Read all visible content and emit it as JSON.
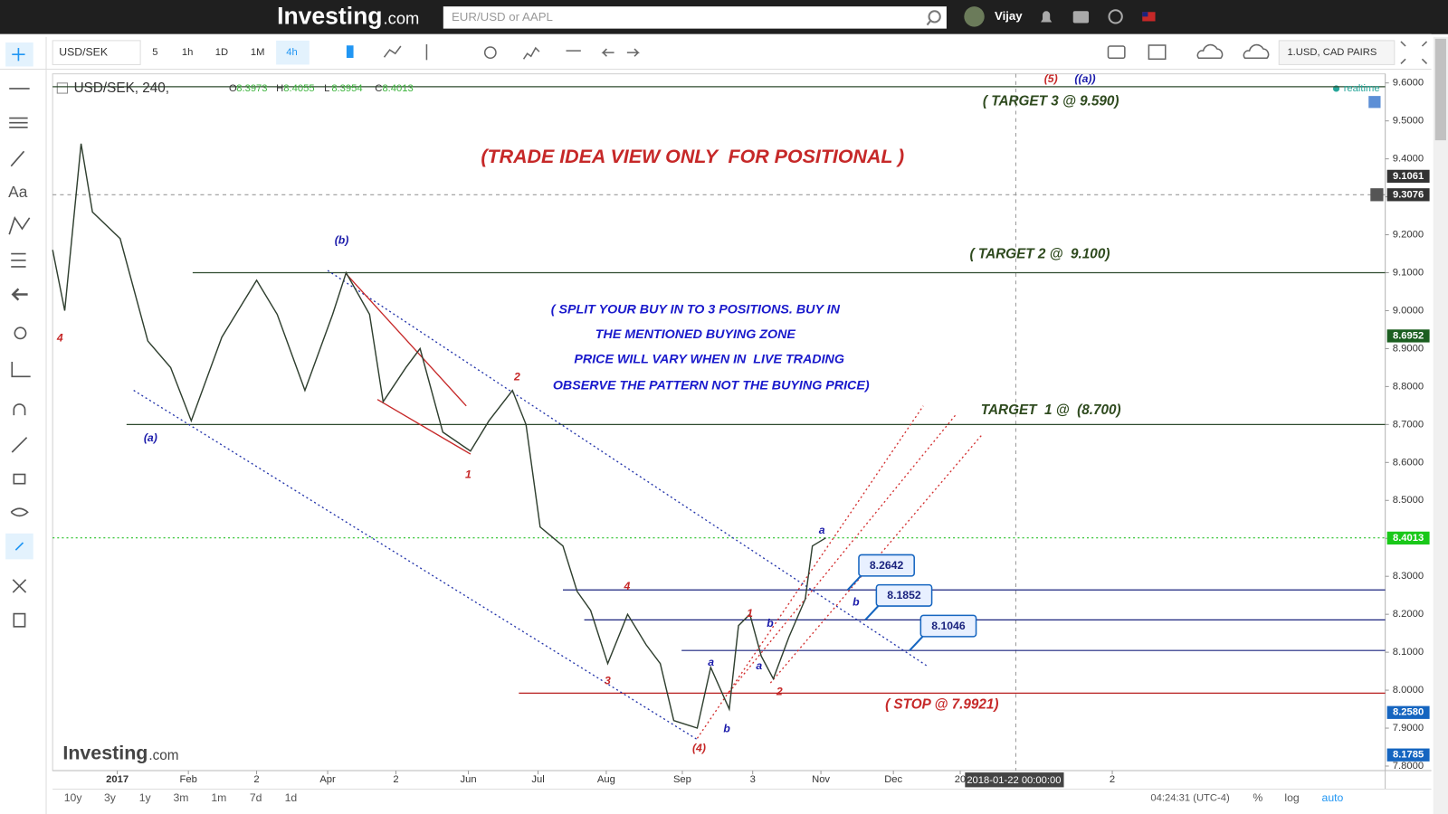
{
  "header": {
    "logo_main": "Investing",
    "logo_suffix": ".com",
    "search_placeholder": "EUR/USD or AAPL",
    "user": "Vijay"
  },
  "toolbar": {
    "symbol": "USD/SEK",
    "intervals": [
      "5",
      "1h",
      "1D",
      "1M",
      "4h"
    ],
    "watchlist": "1.USD, CAD PAIRS"
  },
  "sidebar": {
    "text_tool": "Aa"
  },
  "chart_data": {
    "type": "line",
    "title": "USD/SEK, 240,",
    "ohlc": [
      {
        "label": "O",
        "value": 8.3973
      },
      {
        "label": "H",
        "value": 8.4055
      },
      {
        "label": "L",
        "value": 8.3954
      },
      {
        "label": "C",
        "value": 8.4013
      }
    ],
    "realtime": "realtime",
    "color": "#2f3f2f",
    "x": [
      -0.91,
      -0.74,
      -0.51,
      -0.35,
      0.04,
      0.43,
      0.75,
      1.04,
      1.47,
      1.96,
      2.25,
      2.64,
      3.03,
      3.22,
      3.55,
      3.74,
      4.06,
      4.26,
      4.58,
      4.97,
      5.23,
      5.56,
      5.75,
      5.95,
      6.27,
      6.47,
      6.66,
      6.9,
      7.18,
      7.44,
      7.64,
      7.83,
      8.16,
      8.35,
      8.61,
      8.74,
      8.9,
      9.06,
      9.23,
      9.45,
      9.68,
      9.78,
      9.97
    ],
    "values": [
      9.16,
      9.0,
      9.44,
      9.26,
      9.19,
      8.92,
      8.85,
      8.71,
      8.93,
      9.08,
      8.99,
      8.79,
      8.99,
      9.1,
      8.99,
      8.76,
      8.85,
      8.9,
      8.68,
      8.63,
      8.71,
      8.79,
      8.7,
      8.43,
      8.38,
      8.26,
      8.21,
      8.07,
      8.2,
      8.12,
      8.07,
      7.92,
      7.9,
      8.06,
      7.95,
      8.17,
      8.2,
      8.09,
      8.03,
      8.14,
      8.24,
      8.38,
      8.4013
    ],
    "xlim": [
      -0.91,
      17.84
    ],
    "xticks": [
      {
        "value": 0,
        "label": "2017"
      },
      {
        "value": 1,
        "label": "Feb"
      },
      {
        "value": 1.96,
        "label": "2"
      },
      {
        "value": 2.96,
        "label": "Apr"
      },
      {
        "value": 3.92,
        "label": "2"
      },
      {
        "value": 4.94,
        "label": "Jun"
      },
      {
        "value": 5.92,
        "label": "Jul"
      },
      {
        "value": 6.88,
        "label": "Aug"
      },
      {
        "value": 7.95,
        "label": "Sep"
      },
      {
        "value": 8.94,
        "label": "3"
      },
      {
        "value": 9.9,
        "label": "Nov"
      },
      {
        "value": 10.92,
        "label": "Dec"
      },
      {
        "value": 11.86,
        "label": "20"
      },
      {
        "value": 14.0,
        "label": "2"
      }
    ],
    "ylim": [
      7.788,
      9.624
    ],
    "yticks": [
      {
        "value": 7.8,
        "label": "7.8000"
      },
      {
        "value": 7.9,
        "label": "7.9000"
      },
      {
        "value": 8.0,
        "label": "8.0000"
      },
      {
        "value": 8.1,
        "label": "8.1000"
      },
      {
        "value": 8.2,
        "label": "8.2000"
      },
      {
        "value": 8.3,
        "label": "8.3000"
      },
      {
        "value": 8.4,
        "label": "8.4000"
      },
      {
        "value": 8.5,
        "label": "8.5000"
      },
      {
        "value": 8.6,
        "label": "8.6000"
      },
      {
        "value": 8.7,
        "label": "8.7000"
      },
      {
        "value": 8.8,
        "label": "8.8000"
      },
      {
        "value": 8.9,
        "label": "8.9000"
      },
      {
        "value": 9.0,
        "label": "9.0000"
      },
      {
        "value": 9.1,
        "label": "9.1000"
      },
      {
        "value": 9.2,
        "label": "9.2000"
      },
      {
        "value": 9.3,
        "label": "9.3000"
      },
      {
        "value": 9.4,
        "label": "9.4000"
      },
      {
        "value": 9.5,
        "label": "9.5000"
      },
      {
        "value": 9.6,
        "label": "9.6000"
      }
    ],
    "levels": [
      {
        "value": 9.59,
        "start": -0.91,
        "color": "#2e4a2e",
        "style": "solid"
      },
      {
        "value": 9.1,
        "start": 1.06,
        "color": "#2e4a2e",
        "style": "solid"
      },
      {
        "value": 8.7,
        "start": 0.13,
        "color": "#2e4a2e",
        "style": "solid"
      },
      {
        "value": 8.4013,
        "start": -0.91,
        "color": "#22c022",
        "style": "dotted"
      },
      {
        "value": 8.2642,
        "label": "8.2642",
        "start": 6.27,
        "color": "#1a237e",
        "style": "solid"
      },
      {
        "value": 8.1852,
        "label": "8.1852",
        "start": 6.57,
        "color": "#1a237e",
        "style": "solid"
      },
      {
        "value": 8.1046,
        "label": "8.1046",
        "start": 7.94,
        "color": "#1a237e",
        "style": "solid"
      },
      {
        "value": 7.9921,
        "start": 5.65,
        "color": "#b71c1c",
        "style": "solid"
      }
    ],
    "drawings": [
      {
        "x1": 0.23,
        "y1": 8.79,
        "x2": 8.16,
        "y2": 7.87,
        "color": "#2233aa",
        "style": "dotted"
      },
      {
        "x1": 2.96,
        "y1": 9.106,
        "x2": 11.4,
        "y2": 8.063,
        "color": "#2233aa",
        "style": "dotted"
      },
      {
        "x1": 3.22,
        "y1": 9.097,
        "x2": 4.91,
        "y2": 8.749,
        "color": "#c62828",
        "style": "solid"
      },
      {
        "x1": 3.66,
        "y1": 8.766,
        "x2": 4.97,
        "y2": 8.622,
        "color": "#c62828",
        "style": "solid"
      },
      {
        "x1": 8.16,
        "y1": 7.873,
        "x2": 11.34,
        "y2": 8.749,
        "color": "#d32f2f",
        "style": "dotted"
      },
      {
        "x1": 8.61,
        "y1": 7.995,
        "x2": 11.79,
        "y2": 8.724,
        "color": "#d32f2f",
        "style": "dotted"
      },
      {
        "x1": 9.19,
        "y1": 8.019,
        "x2": 12.18,
        "y2": 8.676,
        "color": "#d32f2f",
        "style": "dotted"
      }
    ],
    "wave_labels": [
      {
        "text": "4",
        "color": "#c62828"
      },
      {
        "text": "(a)",
        "color": "#1a1aaa"
      },
      {
        "text": "(b)",
        "color": "#1a1aaa"
      },
      {
        "text": "2",
        "color": "#c62828"
      },
      {
        "text": "1",
        "color": "#c62828"
      },
      {
        "text": "4",
        "color": "#c62828"
      },
      {
        "text": "3",
        "color": "#c62828"
      },
      {
        "text": "(4)",
        "color": "#c62828"
      },
      {
        "text": "a",
        "color": "#1a1aaa"
      },
      {
        "text": "b",
        "color": "#1a1aaa"
      },
      {
        "text": "1",
        "color": "#c62828"
      },
      {
        "text": "b",
        "color": "#1a1aaa"
      },
      {
        "text": "a",
        "color": "#1a1aaa"
      },
      {
        "text": "2",
        "color": "#c62828"
      },
      {
        "text": "a",
        "color": "#1a1aaa"
      },
      {
        "text": "b",
        "color": "#1a1aaa"
      },
      {
        "text": "(5)",
        "color": "#c62828"
      },
      {
        "text": "((a))",
        "color": "#1a1aaa"
      }
    ],
    "notes": [
      {
        "text": "(TRADE IDEA VIEW ONLY  FOR POSITIONAL )",
        "color": "#c62828"
      },
      {
        "text": "( TARGET 3 @ 9.590)",
        "color": "#2e4a1e"
      },
      {
        "text": "( TARGET 2 @  9.100)",
        "color": "#2e4a1e"
      },
      {
        "text": "TARGET  1 @  (8.700)",
        "color": "#2e4a1e"
      },
      {
        "text": "( STOP @ 7.9921)",
        "color": "#c62828"
      },
      {
        "text": "( SPLIT YOUR BUY IN TO 3 POSITIONS. BUY IN",
        "color": "#1a1acc"
      },
      {
        "text": "THE MENTIONED BUYING ZONE",
        "color": "#1a1acc"
      },
      {
        "text": "PRICE WILL VARY WHEN IN  LIVE TRADING",
        "color": "#1a1acc"
      },
      {
        "text": "OBSERVE THE PATTERN NOT THE BUYING PRICE)",
        "color": "#1a1acc"
      }
    ],
    "axis_badges": [
      {
        "label": "9.1061",
        "color": "#333333"
      },
      {
        "label": "9.3076",
        "color": "#333333"
      },
      {
        "label": "8.6952",
        "color": "#1b5e20"
      },
      {
        "label": "8.4013",
        "color": "#19c819"
      },
      {
        "label": "8.2580",
        "color": "#1565c0"
      },
      {
        "label": "8.1785",
        "color": "#1565c0"
      }
    ],
    "crosshair_time": "2018-01-22 00:00:00",
    "watermark_main": "Investing",
    "watermark_suffix": ".com"
  },
  "bottom_bar": {
    "ranges": [
      "10y",
      "3y",
      "1y",
      "3m",
      "1m",
      "7d",
      "1d"
    ],
    "clock": "04:24:31 (UTC-4)",
    "options": [
      "%",
      "log",
      "auto"
    ]
  }
}
